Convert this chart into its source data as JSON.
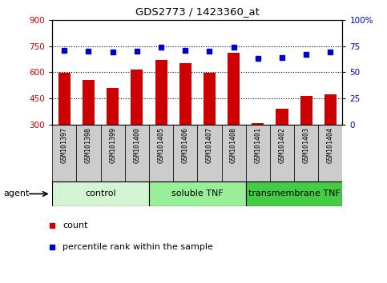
{
  "title": "GDS2773 / 1423360_at",
  "samples": [
    "GSM101397",
    "GSM101398",
    "GSM101399",
    "GSM101400",
    "GSM101405",
    "GSM101406",
    "GSM101407",
    "GSM101408",
    "GSM101401",
    "GSM101402",
    "GSM101403",
    "GSM101404"
  ],
  "counts": [
    595,
    555,
    510,
    615,
    670,
    650,
    595,
    710,
    310,
    390,
    465,
    475
  ],
  "percentiles": [
    71,
    70,
    69,
    70,
    74,
    71,
    70,
    74,
    63,
    64,
    67,
    69
  ],
  "groups": [
    {
      "label": "control",
      "start": 0,
      "end": 4,
      "color": "#d4f5d4"
    },
    {
      "label": "soluble TNF",
      "start": 4,
      "end": 8,
      "color": "#99ee99"
    },
    {
      "label": "transmembrane TNF",
      "start": 8,
      "end": 12,
      "color": "#44cc44"
    }
  ],
  "ylim_left": [
    300,
    900
  ],
  "ylim_right": [
    0,
    100
  ],
  "yticks_left": [
    300,
    450,
    600,
    750,
    900
  ],
  "yticks_right": [
    0,
    25,
    50,
    75,
    100
  ],
  "bar_color": "#cc0000",
  "dot_color": "#0000cc",
  "bar_width": 0.5,
  "base_value": 300,
  "sample_box_color": "#cccccc",
  "legend_count_color": "#cc0000",
  "legend_dot_color": "#0000cc",
  "grid_lines": [
    450,
    600,
    750
  ],
  "agent_label": "agent"
}
